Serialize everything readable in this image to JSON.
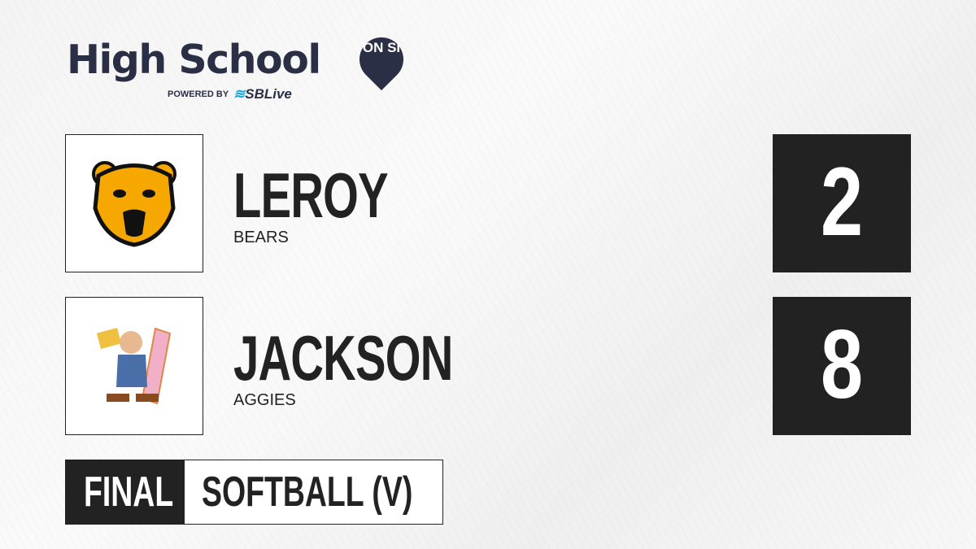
{
  "brand": {
    "title": "High School",
    "pin": "ON SI",
    "powered_by": "POWERED BY",
    "partner": "SBLive",
    "accent": "#2b2f45",
    "partner_color": "#1aa7e0"
  },
  "teams": [
    {
      "name": "LEROY",
      "mascot": "BEARS",
      "score": "2",
      "logo_icon": "bear-logo"
    },
    {
      "name": "JACKSON",
      "mascot": "AGGIES",
      "score": "8",
      "logo_icon": "aggies-logo"
    }
  ],
  "status": {
    "state": "FINAL",
    "sport": "SOFTBALL (V)"
  }
}
